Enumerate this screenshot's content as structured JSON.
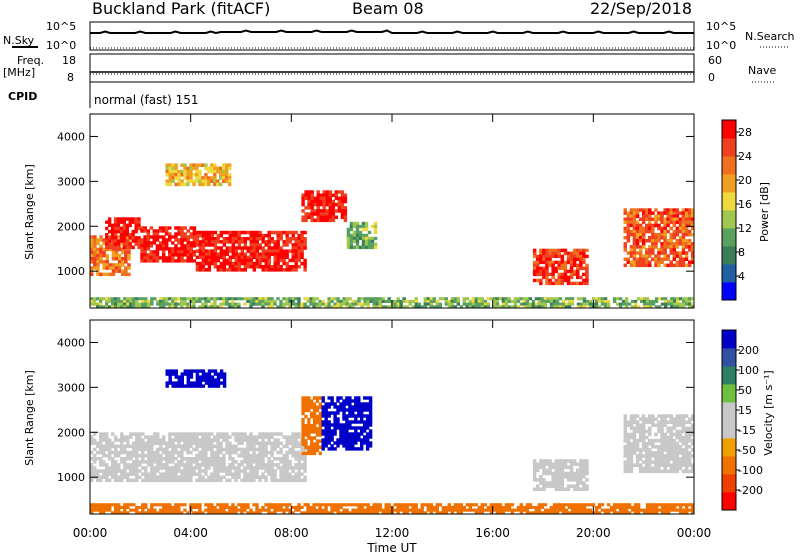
{
  "header": {
    "site": "Buckland Park (fitACF)",
    "beam": "Beam 08",
    "date": "22/Sep/2018"
  },
  "status_panels": {
    "nsky_label": "N.Sky",
    "nsearch_label": "N.Search",
    "freq_label": "Freq.",
    "freq_unit": "[MHz]",
    "nave_label": "Nave",
    "cpid_label": "CPID",
    "cpid_value": "normal (fast) 151",
    "noise_ticks": [
      "10^5",
      "10^0"
    ],
    "freq_ticks": [
      "18",
      "8"
    ],
    "nave_ticks": [
      "60",
      "0"
    ]
  },
  "colors": {
    "power": [
      "#0000ff",
      "#2060a0",
      "#3a7f5a",
      "#5aa060",
      "#a0c850",
      "#f0d840",
      "#f0a020",
      "#f07020",
      "#f04020",
      "#ff0000"
    ],
    "velocity": [
      "#ff0000",
      "#f04000",
      "#f07000",
      "#f0a000",
      "#c8c8c8",
      "#c8c8c8",
      "#70c040",
      "#2a8060",
      "#3050a0",
      "#0000c8"
    ]
  },
  "chart_data": [
    {
      "type": "heatmap",
      "panel": "power",
      "ylabel": "Slant Range [km]",
      "xlabel": "Time UT",
      "xlim": [
        0,
        24
      ],
      "ylim": [
        180,
        4500
      ],
      "x_ticks": [
        "00:00",
        "04:00",
        "08:00",
        "12:00",
        "16:00",
        "20:00",
        "00:00"
      ],
      "y_ticks": [
        "1000",
        "2000",
        "3000",
        "4000"
      ],
      "colorbar": {
        "label": "Power [dB]",
        "ticks": [
          "4",
          "8",
          "12",
          "16",
          "20",
          "24",
          "28"
        ],
        "range": [
          0,
          30
        ]
      },
      "regions": [
        {
          "t0": 0.0,
          "t1": 24.0,
          "r0": 180,
          "r1": 420,
          "value": 12
        },
        {
          "t0": 0.0,
          "t1": 1.6,
          "r0": 900,
          "r1": 1800,
          "value": 22
        },
        {
          "t0": 0.6,
          "t1": 2.0,
          "r0": 1500,
          "r1": 2200,
          "value": 28
        },
        {
          "t0": 2.0,
          "t1": 4.2,
          "r0": 1200,
          "r1": 2000,
          "value": 28
        },
        {
          "t0": 4.2,
          "t1": 8.6,
          "r0": 1000,
          "r1": 1900,
          "value": 28
        },
        {
          "t0": 3.0,
          "t1": 5.6,
          "r0": 2900,
          "r1": 3400,
          "value": 18
        },
        {
          "t0": 8.4,
          "t1": 10.2,
          "r0": 2100,
          "r1": 2800,
          "value": 28
        },
        {
          "t0": 10.2,
          "t1": 11.4,
          "r0": 1500,
          "r1": 2100,
          "value": 12
        },
        {
          "t0": 17.6,
          "t1": 19.8,
          "r0": 700,
          "r1": 1500,
          "value": 26
        },
        {
          "t0": 21.2,
          "t1": 24.0,
          "r0": 1100,
          "r1": 2400,
          "value": 24
        }
      ]
    },
    {
      "type": "heatmap",
      "panel": "velocity",
      "ylabel": "Slant Range [km]",
      "xlabel": "Time UT",
      "xlim": [
        0,
        24
      ],
      "ylim": [
        180,
        4500
      ],
      "x_ticks": [
        "00:00",
        "04:00",
        "08:00",
        "12:00",
        "16:00",
        "20:00",
        "00:00"
      ],
      "y_ticks": [
        "1000",
        "2000",
        "3000",
        "4000"
      ],
      "colorbar": {
        "label": "Velocity [m s⁻¹]",
        "ticks": [
          "-200",
          "-100",
          "-50",
          "-15",
          "15",
          "50",
          "100",
          "200"
        ]
      },
      "regions": [
        {
          "t0": 0.0,
          "t1": 24.0,
          "r0": 180,
          "r1": 420,
          "value": -60
        },
        {
          "t0": 0.0,
          "t1": 8.6,
          "r0": 900,
          "r1": 2000,
          "value": 0
        },
        {
          "t0": 3.0,
          "t1": 5.4,
          "r0": 3000,
          "r1": 3400,
          "value": 220
        },
        {
          "t0": 8.4,
          "t1": 9.2,
          "r0": 1500,
          "r1": 2800,
          "value": -70
        },
        {
          "t0": 9.2,
          "t1": 11.2,
          "r0": 1600,
          "r1": 2800,
          "value": 230
        },
        {
          "t0": 17.6,
          "t1": 19.8,
          "r0": 700,
          "r1": 1400,
          "value": 0
        },
        {
          "t0": 21.2,
          "t1": 24.0,
          "r0": 1100,
          "r1": 2400,
          "value": 0
        }
      ]
    }
  ]
}
